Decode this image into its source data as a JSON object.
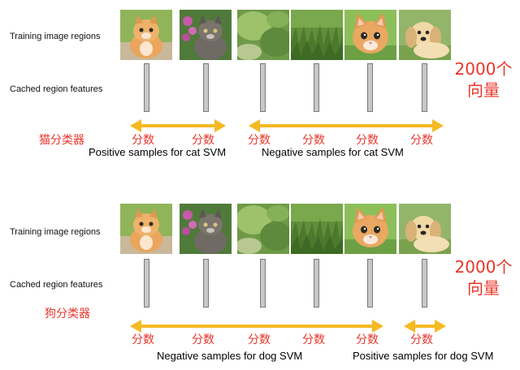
{
  "panels": [
    {
      "training_label": "Training image regions",
      "features_label": "Cached region features",
      "classifier": "猫分类器",
      "vector_count": "2000个",
      "vector_unit": "向量",
      "scores": [
        "分数",
        "分数",
        "分数",
        "分数",
        "分数",
        "分数"
      ],
      "positive_caption": "Positive samples for cat SVM",
      "negative_caption": "Negative samples for cat SVM"
    },
    {
      "training_label": "Training image regions",
      "features_label": "Cached region features",
      "classifier": "狗分类器",
      "vector_count": "2000个",
      "vector_unit": "向量",
      "scores": [
        "分数",
        "分数",
        "分数",
        "分数",
        "分数",
        "分数"
      ],
      "negative_caption": "Negative samples for dog SVM",
      "positive_caption": "Positive samples for dog SVM"
    }
  ],
  "colors": {
    "arrow": "#f5b922",
    "red_text": "#e8362a",
    "feature_bar": "#c8c8c8"
  },
  "images": [
    "kitten-orange-icon",
    "kitten-grey-icon",
    "grass-blur-icon",
    "grass-icon",
    "kitten-face-icon",
    "puppy-icon"
  ]
}
